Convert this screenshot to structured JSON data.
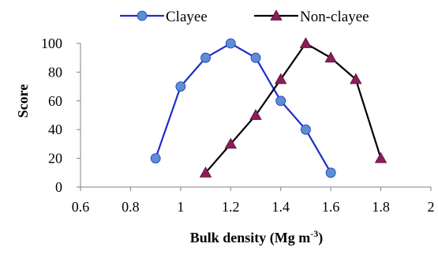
{
  "chart_data": {
    "type": "line",
    "title": "",
    "xlabel": "Bulk density (Mg m",
    "xlabel_sup": "-3",
    "xlabel_tail": ")",
    "ylabel": "Score",
    "xlim": [
      0.6,
      2
    ],
    "ylim": [
      0,
      100
    ],
    "xticks": [
      "0.6",
      "0.8",
      "1",
      "1.2",
      "1.4",
      "1.6",
      "1.8",
      "2"
    ],
    "yticks": [
      "0",
      "20",
      "40",
      "60",
      "80",
      "100"
    ],
    "grid": false,
    "legend_position": "top",
    "series": [
      {
        "name": "Clayee",
        "color": "#1F2DC8",
        "marker": "circle",
        "marker_color": "#5B8FD0",
        "x": [
          0.9,
          1.0,
          1.1,
          1.2,
          1.3,
          1.4,
          1.5,
          1.6
        ],
        "y": [
          20,
          70,
          90,
          100,
          90,
          60,
          40,
          10
        ]
      },
      {
        "name": "Non-clayee",
        "color": "#000000",
        "marker": "triangle",
        "marker_color": "#8B1E5A",
        "x": [
          1.1,
          1.2,
          1.3,
          1.4,
          1.5,
          1.6,
          1.7,
          1.8
        ],
        "y": [
          10,
          30,
          50,
          75,
          100,
          90,
          75,
          20
        ]
      }
    ]
  }
}
